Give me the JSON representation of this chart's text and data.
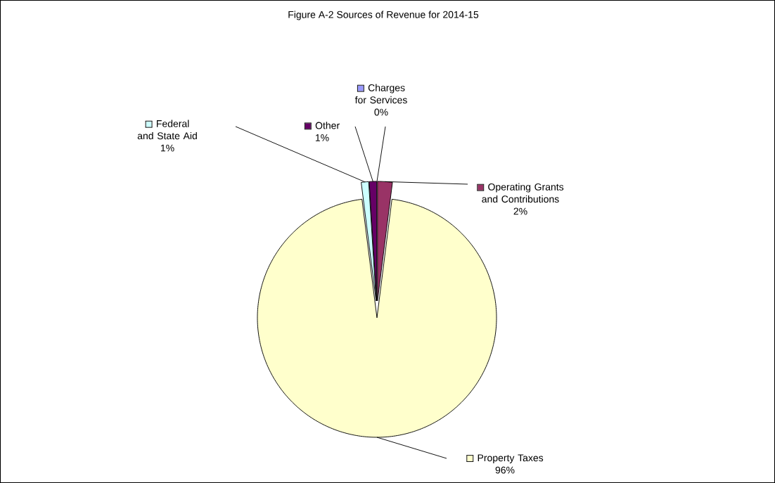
{
  "chart_data": {
    "type": "pie",
    "title": "Figure A-2 Sources of Revenue for 2014-15",
    "categories": [
      "Operating Grants and Contributions",
      "Property Taxes",
      "Federal and State Aid",
      "Other",
      "Charges for Services"
    ],
    "values": [
      2,
      96,
      1,
      1,
      0
    ],
    "value_labels": [
      "2%",
      "96%",
      "1%",
      "1%",
      "0%"
    ],
    "colors": [
      "#993366",
      "#ffffcc",
      "#ccffff",
      "#660066",
      "#9999ff"
    ],
    "legend": "top"
  }
}
